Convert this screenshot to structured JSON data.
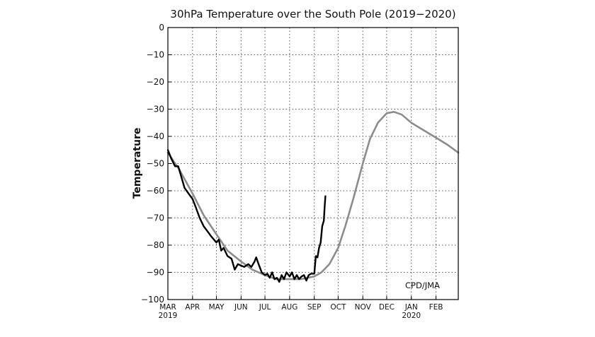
{
  "chart_data": {
    "type": "line",
    "title": "30hPa Temperature over the South Pole (2019−2020)",
    "ylabel": "Temperature",
    "xlabel": "",
    "ylim": [
      -100,
      0
    ],
    "xlim": [
      "2019-03-01",
      "2020-02-29"
    ],
    "grid": true,
    "yticks": [
      {
        "value": 0,
        "label": "0"
      },
      {
        "value": -10,
        "label": "−10"
      },
      {
        "value": -20,
        "label": "−20"
      },
      {
        "value": -30,
        "label": "−30"
      },
      {
        "value": -40,
        "label": "−40"
      },
      {
        "value": -50,
        "label": "−50"
      },
      {
        "value": -60,
        "label": "−60"
      },
      {
        "value": -70,
        "label": "−70"
      },
      {
        "value": -80,
        "label": "−80"
      },
      {
        "value": -90,
        "label": "−90"
      },
      {
        "value": -100,
        "label": "−100"
      }
    ],
    "xticks": [
      {
        "date": "2019-03-01",
        "label": "MAR",
        "sublabel": "2019"
      },
      {
        "date": "2019-04-01",
        "label": "APR"
      },
      {
        "date": "2019-05-01",
        "label": "MAY"
      },
      {
        "date": "2019-06-01",
        "label": "JUN"
      },
      {
        "date": "2019-07-01",
        "label": "JUL"
      },
      {
        "date": "2019-08-01",
        "label": "AUG"
      },
      {
        "date": "2019-09-01",
        "label": "SEP"
      },
      {
        "date": "2019-10-01",
        "label": "OCT"
      },
      {
        "date": "2019-11-01",
        "label": "NOV"
      },
      {
        "date": "2019-12-01",
        "label": "DEC"
      },
      {
        "date": "2020-01-01",
        "label": "JAN",
        "sublabel": "2020"
      },
      {
        "date": "2020-02-01",
        "label": "FEB"
      }
    ],
    "series": [
      {
        "color": "#8c8c8c",
        "x": [
          "2019-03-01",
          "2019-03-15",
          "2019-04-01",
          "2019-04-15",
          "2019-05-01",
          "2019-05-15",
          "2019-06-01",
          "2019-06-15",
          "2019-07-01",
          "2019-07-15",
          "2019-08-01",
          "2019-08-15",
          "2019-09-01",
          "2019-09-10",
          "2019-09-20",
          "2019-10-01",
          "2019-10-10",
          "2019-10-20",
          "2019-11-01",
          "2019-11-10",
          "2019-11-20",
          "2019-12-01",
          "2019-12-10",
          "2019-12-20",
          "2020-01-01",
          "2020-01-15",
          "2020-02-01",
          "2020-02-15",
          "2020-02-29"
        ],
        "y": [
          -46,
          -52,
          -61,
          -69,
          -76,
          -82,
          -86,
          -89,
          -91,
          -92.5,
          -92.5,
          -92.5,
          -91.5,
          -90,
          -87,
          -81,
          -73,
          -63,
          -50,
          -41,
          -35,
          -31.5,
          -31,
          -32,
          -35,
          -37.5,
          -40.5,
          -43,
          -46
        ]
      },
      {
        "color": "#000000",
        "x": [
          "2019-03-01",
          "2019-03-05",
          "2019-03-10",
          "2019-03-14",
          "2019-03-18",
          "2019-03-22",
          "2019-03-27",
          "2019-04-01",
          "2019-04-05",
          "2019-04-10",
          "2019-04-15",
          "2019-04-20",
          "2019-04-25",
          "2019-05-01",
          "2019-05-04",
          "2019-05-07",
          "2019-05-10",
          "2019-05-15",
          "2019-05-20",
          "2019-05-24",
          "2019-05-28",
          "2019-06-01",
          "2019-06-05",
          "2019-06-10",
          "2019-06-14",
          "2019-06-18",
          "2019-06-20",
          "2019-06-23",
          "2019-06-27",
          "2019-07-01",
          "2019-07-04",
          "2019-07-07",
          "2019-07-10",
          "2019-07-13",
          "2019-07-16",
          "2019-07-19",
          "2019-07-22",
          "2019-07-25",
          "2019-07-28",
          "2019-08-01",
          "2019-08-04",
          "2019-08-07",
          "2019-08-10",
          "2019-08-13",
          "2019-08-16",
          "2019-08-19",
          "2019-08-22",
          "2019-08-25",
          "2019-08-28",
          "2019-09-01",
          "2019-09-03",
          "2019-09-05",
          "2019-09-07",
          "2019-09-09",
          "2019-09-11",
          "2019-09-13",
          "2019-09-14",
          "2019-09-15"
        ],
        "y": [
          -45,
          -48,
          -51,
          -51,
          -55,
          -59,
          -61,
          -63,
          -66,
          -70,
          -73,
          -75,
          -77,
          -79,
          -78,
          -82,
          -81,
          -84,
          -85,
          -89,
          -87,
          -87.5,
          -88,
          -87,
          -88,
          -86,
          -84.5,
          -87,
          -90,
          -91,
          -90.5,
          -92,
          -90,
          -92.5,
          -92,
          -93.5,
          -91,
          -92.5,
          -90,
          -91.5,
          -90,
          -92.5,
          -91,
          -92.5,
          -91.5,
          -91,
          -93,
          -91,
          -90.5,
          -90.5,
          -84,
          -84.5,
          -81,
          -79,
          -73,
          -71,
          -66,
          -62
        ]
      }
    ],
    "annotation": "CPD/JMA"
  }
}
